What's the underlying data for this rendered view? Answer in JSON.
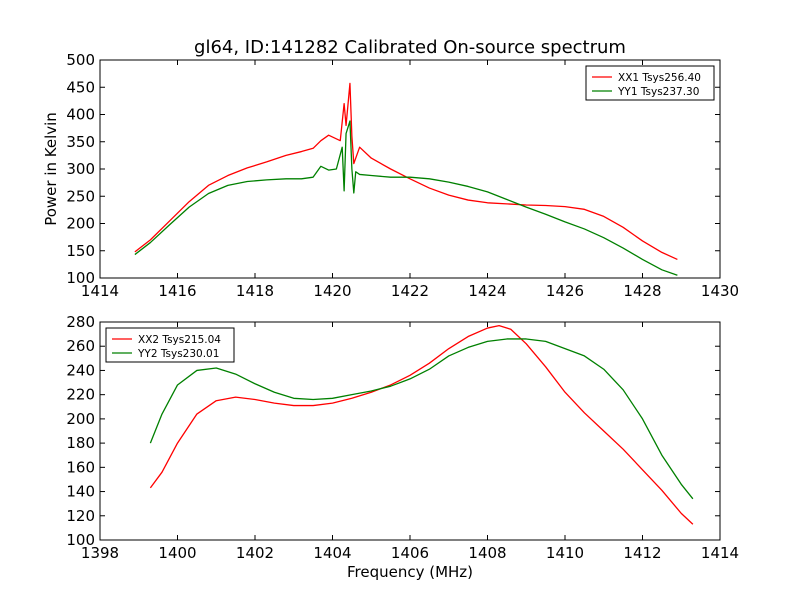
{
  "title": "gl64, ID:141282 Calibrated On-source spectrum",
  "colors": {
    "red": "#ff0000",
    "green": "#008000"
  },
  "chart_data": [
    {
      "type": "line",
      "title": "gl64, ID:141282 Calibrated On-source spectrum",
      "xlabel": "",
      "ylabel": "Power in Kelvin",
      "xlim": [
        1414,
        1430
      ],
      "ylim": [
        100,
        500
      ],
      "xticks": [
        1414,
        1416,
        1418,
        1420,
        1422,
        1424,
        1426,
        1428,
        1430
      ],
      "yticks": [
        100,
        150,
        200,
        250,
        300,
        350,
        400,
        450,
        500
      ],
      "legend_position": "top-right",
      "series": [
        {
          "name": "XX1 Tsys256.40",
          "color": "#ff0000",
          "x": [
            1414.9,
            1415.3,
            1415.8,
            1416.3,
            1416.8,
            1417.3,
            1417.8,
            1418.3,
            1418.8,
            1419.2,
            1419.5,
            1419.7,
            1419.9,
            1420.05,
            1420.2,
            1420.3,
            1420.35,
            1420.45,
            1420.5,
            1420.55,
            1420.7,
            1421.0,
            1421.5,
            1422.0,
            1422.5,
            1423.0,
            1423.5,
            1424.0,
            1424.5,
            1425.0,
            1425.5,
            1426.0,
            1426.5,
            1427.0,
            1427.5,
            1428.0,
            1428.5,
            1428.9
          ],
          "y": [
            148,
            170,
            205,
            240,
            270,
            288,
            302,
            313,
            325,
            332,
            338,
            352,
            362,
            357,
            352,
            420,
            380,
            457,
            360,
            310,
            340,
            320,
            300,
            282,
            265,
            252,
            243,
            238,
            236,
            234,
            233,
            231,
            226,
            213,
            193,
            168,
            147,
            134
          ]
        },
        {
          "name": "YY1 Tsys237.30",
          "color": "#008000",
          "x": [
            1414.9,
            1415.3,
            1415.8,
            1416.3,
            1416.8,
            1417.3,
            1417.8,
            1418.3,
            1418.8,
            1419.2,
            1419.5,
            1419.7,
            1419.9,
            1420.1,
            1420.25,
            1420.3,
            1420.35,
            1420.45,
            1420.5,
            1420.55,
            1420.6,
            1420.7,
            1421.0,
            1421.5,
            1422.0,
            1422.5,
            1423.0,
            1423.5,
            1424.0,
            1424.5,
            1425.0,
            1425.5,
            1426.0,
            1426.5,
            1427.0,
            1427.5,
            1428.0,
            1428.5,
            1428.9
          ],
          "y": [
            143,
            165,
            198,
            230,
            255,
            270,
            277,
            280,
            282,
            282,
            285,
            305,
            298,
            300,
            340,
            260,
            365,
            388,
            300,
            256,
            295,
            290,
            288,
            285,
            285,
            282,
            276,
            268,
            258,
            244,
            230,
            217,
            203,
            190,
            174,
            155,
            134,
            115,
            105
          ]
        }
      ]
    },
    {
      "type": "line",
      "title": "",
      "xlabel": "Frequency (MHz)",
      "ylabel": "",
      "xlim": [
        1398,
        1414
      ],
      "ylim": [
        100,
        280
      ],
      "xticks": [
        1398,
        1400,
        1402,
        1404,
        1406,
        1408,
        1410,
        1412,
        1414
      ],
      "yticks": [
        100,
        120,
        140,
        160,
        180,
        200,
        220,
        240,
        260,
        280
      ],
      "legend_position": "top-left",
      "series": [
        {
          "name": "XX2 Tsys215.04",
          "color": "#ff0000",
          "x": [
            1399.3,
            1399.6,
            1400.0,
            1400.5,
            1401.0,
            1401.5,
            1402.0,
            1402.5,
            1403.0,
            1403.5,
            1404.0,
            1404.5,
            1405.0,
            1405.5,
            1406.0,
            1406.5,
            1407.0,
            1407.5,
            1408.0,
            1408.3,
            1408.6,
            1409.0,
            1409.5,
            1410.0,
            1410.5,
            1411.0,
            1411.5,
            1412.0,
            1412.5,
            1413.0,
            1413.3
          ],
          "y": [
            143,
            156,
            180,
            204,
            215,
            218,
            216,
            213,
            211,
            211,
            213,
            217,
            222,
            228,
            236,
            246,
            258,
            268,
            275,
            277,
            274,
            262,
            243,
            222,
            205,
            190,
            175,
            158,
            141,
            122,
            113
          ]
        },
        {
          "name": "YY2 Tsys230.01",
          "color": "#008000",
          "x": [
            1399.3,
            1399.6,
            1400.0,
            1400.5,
            1401.0,
            1401.5,
            1402.0,
            1402.5,
            1403.0,
            1403.5,
            1404.0,
            1404.5,
            1405.0,
            1405.5,
            1406.0,
            1406.5,
            1407.0,
            1407.5,
            1408.0,
            1408.5,
            1409.0,
            1409.5,
            1410.0,
            1410.5,
            1411.0,
            1411.5,
            1412.0,
            1412.5,
            1413.0,
            1413.3
          ],
          "y": [
            180,
            204,
            228,
            240,
            242,
            237,
            229,
            222,
            217,
            216,
            217,
            220,
            223,
            227,
            233,
            241,
            252,
            259,
            264,
            266,
            266,
            264,
            258,
            252,
            241,
            224,
            200,
            170,
            146,
            134
          ]
        }
      ]
    }
  ]
}
